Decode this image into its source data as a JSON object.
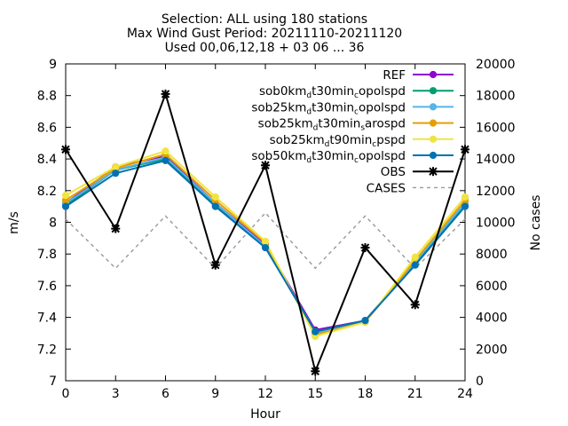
{
  "title_lines": [
    "Selection: ALL using   180 stations",
    "Max Wind Gust   Period: 20211110-20211120",
    "Used 00,06,12,18 + 03 06 ... 36"
  ],
  "chart_data": {
    "type": "line",
    "title": "Selection: ALL using   180 stations / Max Wind Gust   Period: 20211110-20211120 / Used 00,06,12,18 + 03 06 ... 36",
    "xlabel": "Hour",
    "ylabel": "m/s",
    "y2label": "No cases",
    "xlim": [
      0,
      24
    ],
    "ylim": [
      7,
      9
    ],
    "y2lim": [
      0,
      20000
    ],
    "x_ticks": [
      0,
      3,
      6,
      9,
      12,
      15,
      18,
      21,
      24
    ],
    "y_ticks": [
      "7",
      "7.2",
      "7.4",
      "7.6",
      "7.8",
      "8",
      "8.2",
      "8.4",
      "8.6",
      "8.8",
      "9"
    ],
    "y2_ticks": [
      "0",
      "2000",
      "4000",
      "6000",
      "8000",
      "10000",
      "12000",
      "14000",
      "16000",
      "18000",
      "20000"
    ],
    "grid": false,
    "legend_position": "top-right",
    "x": [
      0,
      3,
      6,
      9,
      12,
      15,
      18,
      21,
      24
    ],
    "series": [
      {
        "name": "REF",
        "legend": [
          {
            "t": "REF"
          }
        ],
        "color": "#9400d3",
        "marker": "circle",
        "axis": "y1",
        "dash": false,
        "values": [
          8.12,
          8.35,
          8.42,
          8.12,
          7.86,
          7.32,
          7.38,
          7.75,
          8.12
        ]
      },
      {
        "name": "sob0km_dt30min_copolspd",
        "legend": [
          {
            "t": "sob0km"
          },
          {
            "t": "d",
            "sub": true
          },
          {
            "t": "t30min"
          },
          {
            "t": "c",
            "sub": true
          },
          {
            "t": "opolspd"
          }
        ],
        "color": "#009e73",
        "marker": "circle",
        "axis": "y1",
        "dash": false,
        "values": [
          8.11,
          8.33,
          8.4,
          8.11,
          7.85,
          7.31,
          7.38,
          7.74,
          8.11
        ]
      },
      {
        "name": "sob25km_dt30min_copolspd",
        "legend": [
          {
            "t": "sob25km"
          },
          {
            "t": "d",
            "sub": true
          },
          {
            "t": "t30min"
          },
          {
            "t": "c",
            "sub": true
          },
          {
            "t": "opolspd"
          }
        ],
        "color": "#56b4e9",
        "marker": "circle",
        "axis": "y1",
        "dash": false,
        "values": [
          8.12,
          8.33,
          8.41,
          8.12,
          7.85,
          7.3,
          7.38,
          7.75,
          8.12
        ]
      },
      {
        "name": "sob25km_dt30min_sarospd",
        "legend": [
          {
            "t": "sob25km"
          },
          {
            "t": "d",
            "sub": true
          },
          {
            "t": "t30min"
          },
          {
            "t": "s",
            "sub": true
          },
          {
            "t": "arospd"
          }
        ],
        "color": "#e69f00",
        "marker": "circle",
        "axis": "y1",
        "dash": false,
        "values": [
          8.14,
          8.34,
          8.43,
          8.14,
          7.87,
          7.29,
          7.37,
          7.76,
          8.14
        ]
      },
      {
        "name": "sob25km_dt90min_cpspd",
        "legend": [
          {
            "t": "sob25km"
          },
          {
            "t": "d",
            "sub": true
          },
          {
            "t": "t90min"
          },
          {
            "t": "c",
            "sub": true
          },
          {
            "t": "pspd"
          }
        ],
        "color": "#f0e442",
        "marker": "circle",
        "axis": "y1",
        "dash": false,
        "values": [
          8.17,
          8.35,
          8.45,
          8.16,
          7.88,
          7.28,
          7.37,
          7.78,
          8.16
        ]
      },
      {
        "name": "sob50km_dt30min_copolspd",
        "legend": [
          {
            "t": "sob50km"
          },
          {
            "t": "d",
            "sub": true
          },
          {
            "t": "t30min"
          },
          {
            "t": "c",
            "sub": true
          },
          {
            "t": "opolspd"
          }
        ],
        "color": "#0072b2",
        "marker": "circle",
        "axis": "y1",
        "dash": false,
        "values": [
          8.1,
          8.31,
          8.39,
          8.1,
          7.84,
          7.31,
          7.38,
          7.73,
          8.1
        ]
      },
      {
        "name": "OBS",
        "legend": [
          {
            "t": "OBS"
          }
        ],
        "color": "#000000",
        "marker": "cross",
        "axis": "y1",
        "dash": false,
        "values": [
          8.46,
          7.96,
          8.81,
          7.73,
          8.36,
          7.06,
          7.84,
          7.48,
          8.46
        ]
      },
      {
        "name": "CASES",
        "legend": [
          {
            "t": "CASES"
          }
        ],
        "color": "#999999",
        "marker": "none",
        "axis": "y2",
        "dash": true,
        "values": [
          10200,
          7100,
          10400,
          7100,
          10600,
          7100,
          10400,
          7100,
          10200
        ]
      }
    ]
  }
}
